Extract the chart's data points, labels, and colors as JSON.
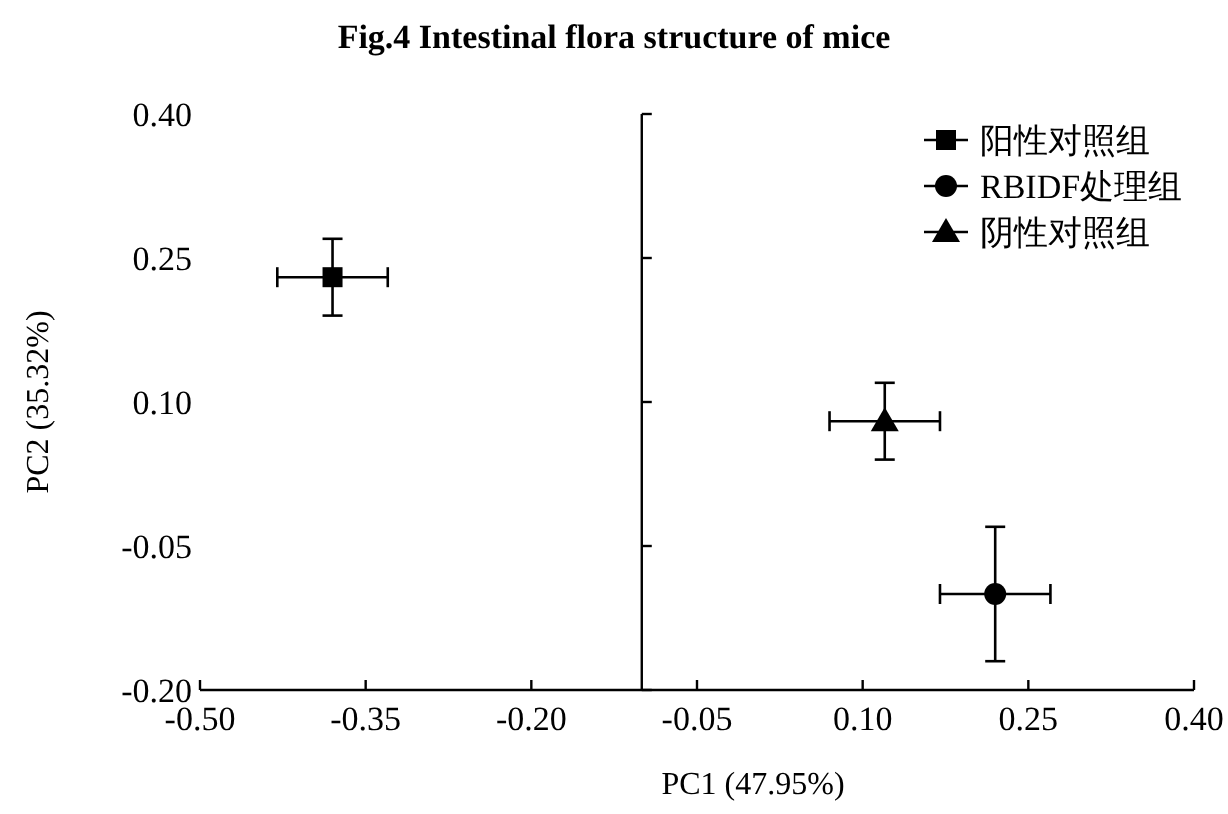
{
  "chart_data": {
    "type": "scatter",
    "title": "Fig.4 Intestinal flora structure of mice",
    "xlabel": "PC1 (47.95%)",
    "ylabel": "PC2 (35.32%)",
    "xlim": [
      -0.5,
      0.4
    ],
    "ylim": [
      -0.2,
      0.4
    ],
    "xticks": [
      {
        "value": -0.5,
        "label": "-0.50"
      },
      {
        "value": -0.35,
        "label": "-0.35"
      },
      {
        "value": -0.2,
        "label": "-0.20"
      },
      {
        "value": -0.05,
        "label": "-0.05"
      },
      {
        "value": 0.1,
        "label": "0.10"
      },
      {
        "value": 0.25,
        "label": "0.25"
      },
      {
        "value": 0.4,
        "label": "0.40"
      }
    ],
    "yticks": [
      {
        "value": -0.2,
        "label": "-0.20"
      },
      {
        "value": -0.05,
        "label": "-0.05"
      },
      {
        "value": 0.1,
        "label": "0.10"
      },
      {
        "value": 0.25,
        "label": "0.25"
      },
      {
        "value": 0.4,
        "label": "0.40"
      }
    ],
    "ref_lines": [
      {
        "axis": "x",
        "value": -0.1,
        "color": "#000000"
      }
    ],
    "legend": "top right",
    "grid": false,
    "series": [
      {
        "name": "阳性对照组",
        "color": "#000000",
        "marker": "square",
        "x": [
          -0.38
        ],
        "values": [
          0.23
        ],
        "errors": [
          0.04
        ],
        "xerrors": [
          0.05
        ]
      },
      {
        "name": "RBIDF处理组",
        "color": "#000000",
        "marker": "circle",
        "x": [
          0.22
        ],
        "values": [
          -0.1
        ],
        "errors": [
          0.07
        ],
        "xerrors": [
          0.05
        ]
      },
      {
        "name": "阴性对照组",
        "color": "#000000",
        "marker": "triangle",
        "x": [
          0.12
        ],
        "values": [
          0.08
        ],
        "errors": [
          0.04
        ],
        "xerrors": [
          0.05
        ]
      }
    ]
  }
}
